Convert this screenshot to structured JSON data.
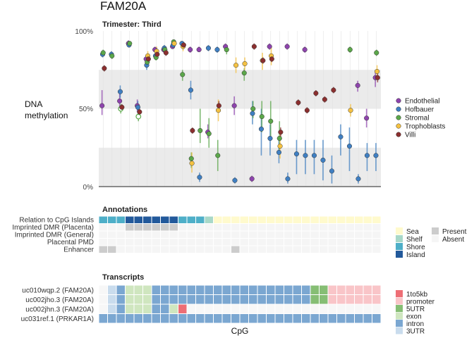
{
  "chart_data": {
    "type": "scatter",
    "title": "FAM20A",
    "panel_title": "Trimester: Third",
    "ylabel_lines": [
      "DNA",
      "methylation"
    ],
    "xlabel": "CpG",
    "ylim": [
      0,
      100
    ],
    "yticks": [
      "0%",
      "50%",
      "100%"
    ],
    "n_cpg": 32,
    "bands": [
      [
        0,
        25
      ],
      [
        50,
        75
      ]
    ],
    "series": [
      {
        "name": "Endothelial",
        "color": "#8E44AD",
        "values": [
          52,
          null,
          55,
          92,
          52,
          82,
          88,
          88,
          90,
          null,
          88,
          88,
          35,
          null,
          90,
          52,
          null,
          5,
          null,
          90,
          null,
          90,
          null,
          88,
          null,
          null,
          null,
          null,
          null,
          65,
          44,
          70
        ],
        "low": [
          46,
          null,
          50,
          91,
          48,
          80,
          86,
          86,
          89,
          null,
          86,
          87,
          31,
          null,
          88,
          46,
          null,
          3,
          null,
          88,
          null,
          88,
          null,
          86,
          null,
          null,
          null,
          null,
          null,
          61,
          38,
          64
        ],
        "high": [
          62,
          null,
          60,
          94,
          56,
          84,
          90,
          90,
          92,
          null,
          90,
          90,
          40,
          null,
          92,
          58,
          null,
          7,
          null,
          92,
          null,
          92,
          null,
          90,
          null,
          null,
          null,
          null,
          null,
          68,
          50,
          75
        ]
      },
      {
        "name": "Hofbauer",
        "color": "#3F7FC2",
        "values": [
          85,
          85,
          61,
          91,
          51,
          78,
          84,
          89,
          91,
          92,
          62,
          6,
          89,
          88,
          null,
          4,
          null,
          47,
          37,
          31,
          22,
          5,
          21,
          20,
          20,
          17,
          10,
          32,
          26,
          5,
          20,
          20
        ],
        "low": [
          83,
          83,
          57,
          90,
          47,
          75,
          82,
          87,
          89,
          90,
          56,
          3,
          87,
          86,
          null,
          2,
          null,
          40,
          20,
          20,
          15,
          2,
          8,
          8,
          8,
          4,
          2,
          20,
          10,
          2,
          10,
          10
        ],
        "high": [
          87,
          87,
          65,
          93,
          55,
          81,
          86,
          91,
          93,
          93,
          68,
          9,
          91,
          90,
          null,
          6,
          null,
          55,
          50,
          40,
          30,
          9,
          30,
          30,
          30,
          30,
          20,
          40,
          38,
          8,
          28,
          28
        ]
      },
      {
        "name": "Stromal",
        "color": "#5BA74A",
        "values": [
          86,
          84,
          50,
          92,
          45,
          80,
          83,
          88,
          93,
          72,
          18,
          36,
          34,
          20,
          88,
          null,
          73,
          50,
          45,
          42,
          31,
          null,
          null,
          null,
          null,
          null,
          null,
          null,
          88,
          null,
          null,
          86
        ],
        "low": [
          84,
          82,
          47,
          90,
          42,
          77,
          81,
          86,
          92,
          68,
          12,
          28,
          25,
          10,
          85,
          null,
          68,
          44,
          35,
          30,
          22,
          null,
          null,
          null,
          null,
          null,
          null,
          null,
          86,
          null,
          null,
          84
        ],
        "high": [
          88,
          86,
          53,
          93,
          48,
          83,
          85,
          90,
          94,
          75,
          22,
          50,
          44,
          30,
          91,
          null,
          76,
          55,
          55,
          55,
          42,
          null,
          null,
          null,
          null,
          null,
          null,
          null,
          90,
          null,
          null,
          88
        ],
        "hollow": [
          2,
          4
        ]
      },
      {
        "name": "Trophoblasts",
        "color": "#F5C242",
        "values": [
          null,
          null,
          null,
          null,
          null,
          84,
          87,
          null,
          92,
          90,
          15,
          null,
          null,
          49,
          null,
          78,
          79,
          null,
          81,
          84,
          26,
          null,
          null,
          null,
          null,
          null,
          null,
          null,
          49,
          null,
          null,
          74
        ],
        "low": [
          null,
          null,
          null,
          null,
          null,
          81,
          84,
          null,
          90,
          87,
          9,
          null,
          null,
          42,
          null,
          73,
          75,
          null,
          75,
          78,
          18,
          null,
          null,
          null,
          null,
          null,
          null,
          null,
          45,
          null,
          null,
          70
        ],
        "high": [
          null,
          null,
          null,
          null,
          null,
          87,
          90,
          null,
          94,
          93,
          22,
          null,
          null,
          56,
          null,
          83,
          83,
          null,
          86,
          90,
          36,
          null,
          null,
          null,
          null,
          null,
          null,
          null,
          53,
          null,
          null,
          78
        ]
      },
      {
        "name": "Villi",
        "color": "#8B2F2F",
        "values": [
          76,
          null,
          51,
          null,
          48,
          82,
          85,
          86,
          null,
          91,
          36,
          null,
          null,
          52,
          null,
          null,
          null,
          90,
          81,
          82,
          35,
          null,
          54,
          49,
          60,
          56,
          62,
          null,
          null,
          null,
          null,
          70
        ],
        "low": [
          74,
          null,
          49,
          null,
          46,
          80,
          83,
          84,
          null,
          89,
          34,
          null,
          null,
          49,
          null,
          null,
          null,
          88,
          79,
          80,
          32,
          null,
          52,
          47,
          58,
          54,
          60,
          null,
          null,
          null,
          null,
          67
        ],
        "high": [
          78,
          null,
          53,
          null,
          50,
          84,
          87,
          88,
          null,
          93,
          38,
          null,
          null,
          55,
          null,
          null,
          null,
          92,
          83,
          84,
          38,
          null,
          56,
          51,
          62,
          58,
          64,
          null,
          null,
          null,
          null,
          73
        ]
      }
    ],
    "legend_position": "right"
  },
  "title": "FAM20A",
  "panel_title": "Trimester: Third",
  "ylabel": {
    "line1": "DNA",
    "line2": "methylation"
  },
  "yticks": {
    "t0": "0%",
    "t50": "50%",
    "t100": "100%"
  },
  "xlabel": "CpG",
  "legend_celltypes": [
    "Endothelial",
    "Hofbauer",
    "Stromal",
    "Trophoblasts",
    "Villi"
  ],
  "annotations": {
    "title": "Annotations",
    "rows": [
      "Relation to CpG Islands",
      "Imprinted DMR (Placenta)",
      "Imprinted DMR (General)",
      "Placental PMD",
      "Enhancer"
    ],
    "island_relation": [
      "Shore",
      "Shore",
      "Shore",
      "Island",
      "Island",
      "Island",
      "Island",
      "Island",
      "Island",
      "Shore",
      "Shore",
      "Shore",
      "Shelf",
      "Sea",
      "Sea",
      "Sea",
      "Sea",
      "Sea",
      "Sea",
      "Sea",
      "Sea",
      "Sea",
      "Sea",
      "Sea",
      "Sea",
      "Sea",
      "Sea",
      "Sea",
      "Sea",
      "Sea",
      "Sea",
      "Sea"
    ],
    "imprinted_placenta": [
      0,
      0,
      0,
      1,
      1,
      1,
      1,
      1,
      1,
      0,
      0,
      0,
      0,
      0,
      0,
      0,
      0,
      0,
      0,
      0,
      0,
      0,
      0,
      0,
      0,
      0,
      0,
      0,
      0,
      0,
      0,
      0
    ],
    "imprinted_general": [
      0,
      0,
      0,
      0,
      0,
      0,
      0,
      0,
      0,
      0,
      0,
      0,
      0,
      0,
      0,
      0,
      0,
      0,
      0,
      0,
      0,
      0,
      0,
      0,
      0,
      0,
      0,
      0,
      0,
      0,
      0,
      0
    ],
    "pmd": [
      0,
      0,
      0,
      0,
      0,
      0,
      0,
      0,
      0,
      0,
      0,
      0,
      0,
      0,
      0,
      0,
      0,
      0,
      0,
      0,
      0,
      0,
      0,
      0,
      0,
      0,
      0,
      0,
      0,
      0,
      0,
      0
    ],
    "enhancer": [
      1,
      1,
      0,
      0,
      0,
      0,
      0,
      0,
      0,
      0,
      0,
      0,
      0,
      0,
      0,
      1,
      0,
      0,
      0,
      0,
      0,
      0,
      0,
      0,
      0,
      0,
      0,
      0,
      0,
      0,
      0,
      0
    ],
    "legend_island": [
      {
        "label": "Sea",
        "color": "#FFFACD"
      },
      {
        "label": "Shelf",
        "color": "#A8D8C8"
      },
      {
        "label": "Shore",
        "color": "#4EAFC8"
      },
      {
        "label": "Island",
        "color": "#22599B"
      }
    ],
    "legend_presence": [
      {
        "label": "Present",
        "color": "#CCCCCC"
      },
      {
        "label": "Absent",
        "color": "#F5F5F5"
      }
    ]
  },
  "transcripts": {
    "title": "Transcripts",
    "rows": [
      "uc010wqp.2 (FAM20A)",
      "uc002jho.3 (FAM20A)",
      "uc002jhn.3 (FAM20A)",
      "uc031ref.1 (PRKAR1A)"
    ],
    "cells": [
      [
        "none",
        "3UTR",
        "intron",
        "exon",
        "exon",
        "exon",
        "intron",
        "intron",
        "intron",
        "intron",
        "intron",
        "intron",
        "intron",
        "intron",
        "intron",
        "intron",
        "intron",
        "intron",
        "intron",
        "intron",
        "intron",
        "intron",
        "intron",
        "intron",
        "5UTR",
        "5UTR",
        "promoter",
        "promoter",
        "promoter",
        "promoter",
        "promoter",
        "promoter"
      ],
      [
        "none",
        "3UTR",
        "intron",
        "exon",
        "exon",
        "exon",
        "intron",
        "intron",
        "intron",
        "intron",
        "intron",
        "intron",
        "intron",
        "intron",
        "intron",
        "intron",
        "intron",
        "intron",
        "intron",
        "intron",
        "intron",
        "intron",
        "intron",
        "intron",
        "5UTR",
        "5UTR",
        "promoter",
        "promoter",
        "promoter",
        "promoter",
        "promoter",
        "promoter"
      ],
      [
        "none",
        "3UTR",
        "intron",
        "exon",
        "exon",
        "exon",
        "intron",
        "intron",
        "exon",
        "1to5kb",
        "none",
        "none",
        "none",
        "none",
        "none",
        "none",
        "none",
        "none",
        "none",
        "none",
        "none",
        "none",
        "none",
        "none",
        "none",
        "none",
        "none",
        "none",
        "none",
        "none",
        "none",
        "none"
      ],
      [
        "intron",
        "intron",
        "intron",
        "intron",
        "intron",
        "intron",
        "intron",
        "intron",
        "intron",
        "intron",
        "intron",
        "intron",
        "intron",
        "intron",
        "intron",
        "intron",
        "intron",
        "intron",
        "intron",
        "intron",
        "intron",
        "intron",
        "intron",
        "intron",
        "intron",
        "intron",
        "intron",
        "intron",
        "intron",
        "intron",
        "intron",
        "intron"
      ]
    ],
    "legend": [
      {
        "label": "1to5kb",
        "color": "#EE6E75"
      },
      {
        "label": "promoter",
        "color": "#F9C5C8"
      },
      {
        "label": "5UTR",
        "color": "#86BE74"
      },
      {
        "label": "exon",
        "color": "#CFE6BF"
      },
      {
        "label": "intron",
        "color": "#7BA7D1"
      },
      {
        "label": "3UTR",
        "color": "#C9DCED"
      }
    ]
  }
}
